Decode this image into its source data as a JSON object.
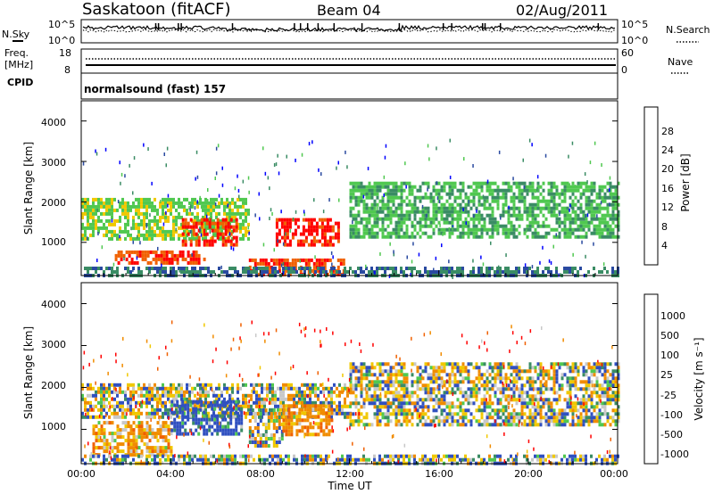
{
  "header": {
    "station": "Saskatoon (fitACF)",
    "beam": "Beam 04",
    "date": "02/Aug/2011"
  },
  "noise_panel": {
    "left_label": "N.Sky",
    "right_label": "N.Search",
    "left_ticks": [
      "10^5",
      "10^0"
    ],
    "right_ticks": [
      "10^5",
      "10^0"
    ]
  },
  "freq_panel": {
    "left_label_1": "Freq.",
    "left_label_2": "[MHz]",
    "left_ticks": [
      "18",
      "8"
    ],
    "right_label": "Nave",
    "right_ticks": [
      "60",
      "0"
    ]
  },
  "cpid_panel": {
    "label": "CPID",
    "mode": "normalsound (fast) 157"
  },
  "power_panel": {
    "ylabel": "Slant Range [km]",
    "yticks": [
      "4000",
      "3000",
      "2000",
      "1000"
    ],
    "colorbar_label": "Power [dB]",
    "colorbar_ticks": [
      "28",
      "24",
      "20",
      "16",
      "12",
      "8",
      "4"
    ],
    "colors": [
      "#0000ff",
      "#2a4aa0",
      "#3a8c64",
      "#50c850",
      "#f0c800",
      "#f08c00",
      "#f06000",
      "#ff0000"
    ]
  },
  "velocity_panel": {
    "ylabel": "Slant Range [km]",
    "yticks": [
      "4000",
      "3000",
      "2000",
      "1000"
    ],
    "colorbar_label": "Velocity [m s⁻¹]",
    "colorbar_ticks": [
      "1000",
      "500",
      "100",
      "25",
      "-25",
      "-100",
      "-500",
      "-1000"
    ],
    "colors": [
      "#2030a0",
      "#3050c0",
      "#3a8c64",
      "#50c850",
      "#c8c8c8",
      "#f0c800",
      "#f08c00",
      "#f06000",
      "#ff0000"
    ]
  },
  "xaxis": {
    "label": "Time UT",
    "ticks": [
      "00:00",
      "04:00",
      "08:00",
      "12:00",
      "16:00",
      "20:00",
      "00:00"
    ]
  },
  "chart_data": [
    {
      "type": "heatmap",
      "title": "Power",
      "xlabel": "",
      "ylabel": "Slant Range [km]",
      "x_range": [
        "00:00",
        "24:00"
      ],
      "ylim": [
        180,
        4500
      ],
      "zlabel": "Power [dB]",
      "zlim": [
        0,
        30
      ],
      "regions": [
        {
          "t_start": 0.0,
          "t_end": 7.5,
          "r_start": 1100,
          "r_end": 2100,
          "level": 14
        },
        {
          "t_start": 1.5,
          "t_end": 5.5,
          "r_start": 500,
          "r_end": 800,
          "level": 26
        },
        {
          "t_start": 4.5,
          "t_end": 7.0,
          "r_start": 900,
          "r_end": 1600,
          "level": 27
        },
        {
          "t_start": 7.5,
          "t_end": 11.8,
          "r_start": 200,
          "r_end": 600,
          "level": 26
        },
        {
          "t_start": 8.7,
          "t_end": 11.5,
          "r_start": 900,
          "r_end": 1600,
          "level": 28
        },
        {
          "t_start": 12.0,
          "t_end": 24.0,
          "r_start": 1100,
          "r_end": 2500,
          "level": 12
        },
        {
          "t_start": 0.0,
          "t_end": 24.0,
          "r_start": 180,
          "r_end": 400,
          "level": 8
        }
      ]
    },
    {
      "type": "heatmap",
      "title": "Velocity",
      "xlabel": "Time UT",
      "ylabel": "Slant Range [km]",
      "x_range": [
        "00:00",
        "24:00"
      ],
      "ylim": [
        180,
        4500
      ],
      "zlabel": "Velocity [m s⁻¹]",
      "zlim": [
        -1000,
        1000
      ],
      "regions": [
        {
          "t_start": 0.0,
          "t_end": 12.0,
          "r_start": 1300,
          "r_end": 2100,
          "level": 0
        },
        {
          "t_start": 0.5,
          "t_end": 4.0,
          "r_start": 400,
          "r_end": 1200,
          "level": -150
        },
        {
          "t_start": 4.0,
          "t_end": 7.2,
          "r_start": 900,
          "r_end": 1700,
          "level": 200
        },
        {
          "t_start": 7.5,
          "t_end": 9.0,
          "r_start": 600,
          "r_end": 1500,
          "level": 0
        },
        {
          "t_start": 9.0,
          "t_end": 11.2,
          "r_start": 900,
          "r_end": 1600,
          "level": -200
        },
        {
          "t_start": 12.0,
          "t_end": 24.0,
          "r_start": 1100,
          "r_end": 2600,
          "level": 0
        },
        {
          "t_start": 0.0,
          "t_end": 24.0,
          "r_start": 180,
          "r_end": 400,
          "level": 60
        }
      ]
    }
  ]
}
